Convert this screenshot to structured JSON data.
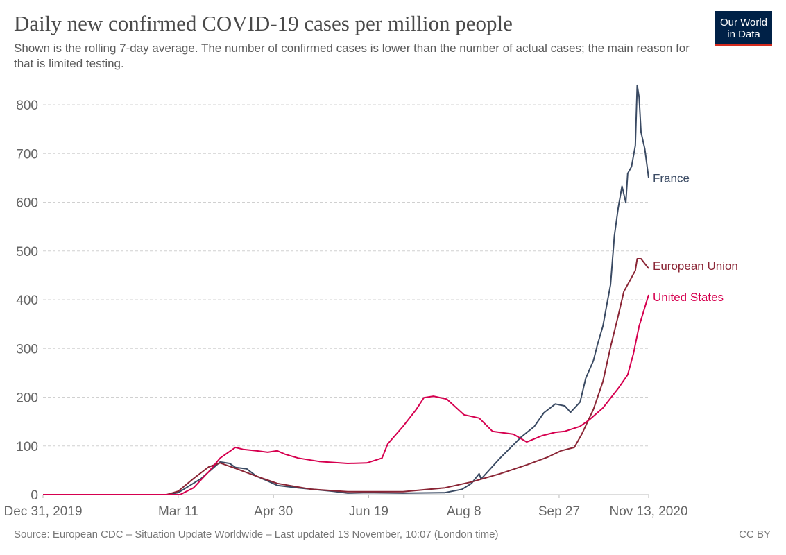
{
  "header": {
    "title": "Daily new confirmed COVID-19 cases per million people",
    "subtitle": "Shown is the rolling 7-day average. The number of confirmed cases is lower than the number of actual cases; the main reason for that is limited testing.",
    "logo_text": "Our World in Data"
  },
  "footer": {
    "source": "Source: European CDC – Situation Update Worldwide – Last updated 13 November, 10:07 (London time)",
    "license": "CC BY"
  },
  "chart_data": {
    "type": "line",
    "title": "Daily new confirmed COVID-19 cases per million people",
    "xlim": [
      "2019-12-31",
      "2020-11-13"
    ],
    "ylim": [
      0,
      850
    ],
    "grid": "horizontal dashed",
    "legend": "end-of-line labels",
    "x_ticks": [
      {
        "date": "2019-12-31",
        "label": "Dec 31, 2019"
      },
      {
        "date": "2020-03-11",
        "label": "Mar 11"
      },
      {
        "date": "2020-04-30",
        "label": "Apr 30"
      },
      {
        "date": "2020-06-19",
        "label": "Jun 19"
      },
      {
        "date": "2020-08-08",
        "label": "Aug 8"
      },
      {
        "date": "2020-09-27",
        "label": "Sep 27"
      },
      {
        "date": "2020-11-13",
        "label": "Nov 13, 2020"
      }
    ],
    "y_ticks": [
      0,
      100,
      200,
      300,
      400,
      500,
      600,
      700,
      800
    ],
    "series": [
      {
        "name": "France",
        "color": "#3a4a63",
        "points": [
          [
            "2019-12-31",
            0
          ],
          [
            "2020-03-05",
            0
          ],
          [
            "2020-03-11",
            4
          ],
          [
            "2020-03-23",
            33
          ],
          [
            "2020-04-02",
            67
          ],
          [
            "2020-04-07",
            64
          ],
          [
            "2020-04-10",
            56
          ],
          [
            "2020-04-16",
            53
          ],
          [
            "2020-04-21",
            38
          ],
          [
            "2020-04-27",
            28
          ],
          [
            "2020-05-02",
            19
          ],
          [
            "2020-05-13",
            14
          ],
          [
            "2020-05-31",
            7
          ],
          [
            "2020-06-08",
            3
          ],
          [
            "2020-06-18",
            4
          ],
          [
            "2020-07-07",
            3
          ],
          [
            "2020-07-29",
            4
          ],
          [
            "2020-08-07",
            11
          ],
          [
            "2020-08-12",
            23
          ],
          [
            "2020-08-16",
            43
          ],
          [
            "2020-08-17",
            32
          ],
          [
            "2020-08-27",
            75
          ],
          [
            "2020-09-07",
            118
          ],
          [
            "2020-09-14",
            140
          ],
          [
            "2020-09-19",
            168
          ],
          [
            "2020-09-25",
            186
          ],
          [
            "2020-09-30",
            182
          ],
          [
            "2020-10-03",
            169
          ],
          [
            "2020-10-08",
            190
          ],
          [
            "2020-10-11",
            239
          ],
          [
            "2020-10-15",
            275
          ],
          [
            "2020-10-17",
            306
          ],
          [
            "2020-10-20",
            346
          ],
          [
            "2020-10-22",
            389
          ],
          [
            "2020-10-24",
            431
          ],
          [
            "2020-10-26",
            531
          ],
          [
            "2020-10-28",
            588
          ],
          [
            "2020-10-30",
            633
          ],
          [
            "2020-11-01",
            599
          ],
          [
            "2020-11-02",
            659
          ],
          [
            "2020-11-04",
            673
          ],
          [
            "2020-11-06",
            716
          ],
          [
            "2020-11-07",
            840
          ],
          [
            "2020-11-08",
            815
          ],
          [
            "2020-11-09",
            744
          ],
          [
            "2020-11-11",
            709
          ],
          [
            "2020-11-13",
            650
          ]
        ]
      },
      {
        "name": "European Union",
        "color": "#8a2535",
        "points": [
          [
            "2019-12-31",
            0
          ],
          [
            "2020-03-05",
            0
          ],
          [
            "2020-03-11",
            7
          ],
          [
            "2020-03-19",
            33
          ],
          [
            "2020-03-27",
            57
          ],
          [
            "2020-04-02",
            65
          ],
          [
            "2020-04-10",
            54
          ],
          [
            "2020-04-21",
            38
          ],
          [
            "2020-05-02",
            23
          ],
          [
            "2020-05-20",
            11
          ],
          [
            "2020-06-08",
            6
          ],
          [
            "2020-07-07",
            6
          ],
          [
            "2020-07-29",
            14
          ],
          [
            "2020-08-12",
            26
          ],
          [
            "2020-08-27",
            43
          ],
          [
            "2020-09-10",
            61
          ],
          [
            "2020-09-21",
            77
          ],
          [
            "2020-09-28",
            90
          ],
          [
            "2020-10-05",
            97
          ],
          [
            "2020-10-09",
            125
          ],
          [
            "2020-10-15",
            175
          ],
          [
            "2020-10-20",
            232
          ],
          [
            "2020-10-24",
            303
          ],
          [
            "2020-10-28",
            367
          ],
          [
            "2020-10-31",
            417
          ],
          [
            "2020-11-03",
            438
          ],
          [
            "2020-11-06",
            460
          ],
          [
            "2020-11-07",
            484
          ],
          [
            "2020-11-09",
            484
          ],
          [
            "2020-11-13",
            464
          ]
        ]
      },
      {
        "name": "United States",
        "color": "#d6004f",
        "points": [
          [
            "2019-12-31",
            0
          ],
          [
            "2020-03-12",
            0
          ],
          [
            "2020-03-19",
            14
          ],
          [
            "2020-03-27",
            47
          ],
          [
            "2020-04-02",
            75
          ],
          [
            "2020-04-10",
            97
          ],
          [
            "2020-04-14",
            93
          ],
          [
            "2020-04-21",
            90
          ],
          [
            "2020-04-27",
            87
          ],
          [
            "2020-05-02",
            90
          ],
          [
            "2020-05-06",
            83
          ],
          [
            "2020-05-13",
            75
          ],
          [
            "2020-05-24",
            68
          ],
          [
            "2020-06-08",
            64
          ],
          [
            "2020-06-18",
            65
          ],
          [
            "2020-06-26",
            75
          ],
          [
            "2020-06-29",
            104
          ],
          [
            "2020-07-07",
            140
          ],
          [
            "2020-07-14",
            175
          ],
          [
            "2020-07-18",
            199
          ],
          [
            "2020-07-23",
            202
          ],
          [
            "2020-07-30",
            196
          ],
          [
            "2020-08-08",
            164
          ],
          [
            "2020-08-16",
            157
          ],
          [
            "2020-08-23",
            130
          ],
          [
            "2020-09-03",
            124
          ],
          [
            "2020-09-10",
            108
          ],
          [
            "2020-09-18",
            121
          ],
          [
            "2020-09-25",
            128
          ],
          [
            "2020-09-30",
            130
          ],
          [
            "2020-10-08",
            140
          ],
          [
            "2020-10-13",
            154
          ],
          [
            "2020-10-20",
            178
          ],
          [
            "2020-10-28",
            218
          ],
          [
            "2020-11-02",
            246
          ],
          [
            "2020-11-05",
            289
          ],
          [
            "2020-11-08",
            346
          ],
          [
            "2020-11-13",
            410
          ]
        ]
      }
    ]
  }
}
